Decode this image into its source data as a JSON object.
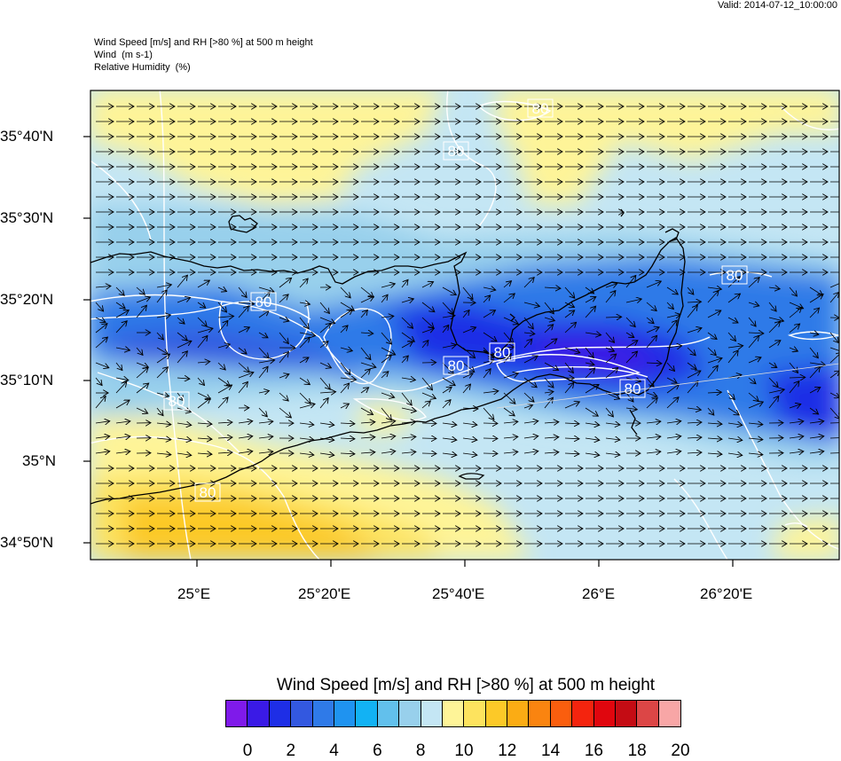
{
  "valid_time": "Valid: 2014-07-12_10:00:00",
  "header": {
    "line1": "Wind Speed [m/s] and RH [>80 %] at 500 m height",
    "line2_name": "Wind",
    "line2_unit": "(m s-1)",
    "line3_name": "Relative Humidity",
    "line3_unit": "(%)"
  },
  "map": {
    "lat_labels": [
      "35°40'N",
      "35°30'N",
      "35°20'N",
      "35°10'N",
      "35°N",
      "34°50'N"
    ],
    "lon_labels": [
      "25°E",
      "25°20'E",
      "25°40'E",
      "26°E",
      "26°20'E"
    ],
    "contour_label": "80",
    "contour_label_count": 10,
    "wind_direction": "mostly eastward"
  },
  "colorbar": {
    "title": "Wind Speed [m/s] and RH [>80 %] at 500 m height",
    "colors": [
      "#7f1aea",
      "#3a1ae6",
      "#1e2ee6",
      "#3358e0",
      "#2f7ae8",
      "#1f93f0",
      "#12b2f4",
      "#62c0ec",
      "#98d0ec",
      "#c4e6f4",
      "#fef498",
      "#fde35e",
      "#fcc928",
      "#fbac14",
      "#fa8410",
      "#fa5e0e",
      "#f4240e",
      "#e0060e",
      "#c40c14",
      "#dc4646",
      "#f8a6a6"
    ],
    "tick_labels": [
      "0",
      "2",
      "4",
      "6",
      "8",
      "10",
      "12",
      "14",
      "16",
      "18",
      "20"
    ]
  }
}
